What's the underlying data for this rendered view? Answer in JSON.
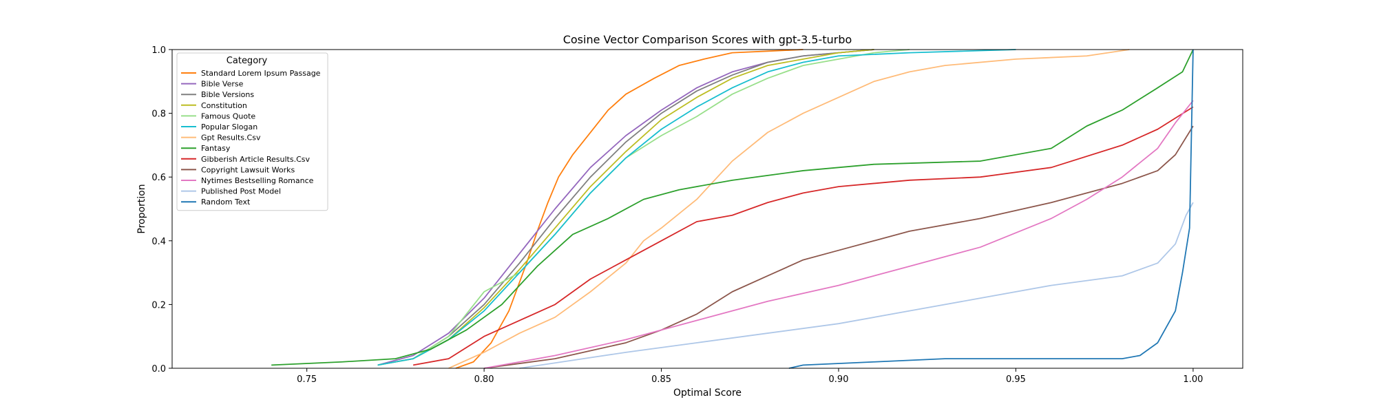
{
  "chart_data": {
    "type": "line",
    "title": "Cosine Vector Comparison Scores with gpt-3.5-turbo",
    "xlabel": "Optimal Score",
    "ylabel": "Proportion",
    "xlim": [
      0.712,
      1.014
    ],
    "ylim": [
      0.0,
      1.0
    ],
    "xticks": [
      0.75,
      0.8,
      0.85,
      0.9,
      0.95,
      1.0
    ],
    "xtick_labels": [
      "0.75",
      "0.80",
      "0.85",
      "0.90",
      "0.95",
      "1.00"
    ],
    "yticks": [
      0.0,
      0.2,
      0.4,
      0.6,
      0.8,
      1.0
    ],
    "ytick_labels": [
      "0.0",
      "0.2",
      "0.4",
      "0.6",
      "0.8",
      "1.0"
    ],
    "grid": false,
    "legend_title": "Category",
    "legend_position": "upper-left",
    "series": [
      {
        "name": "Standard Lorem Ipsum Passage",
        "color": "#ff7f0e",
        "x": [
          0.792,
          0.797,
          0.802,
          0.807,
          0.812,
          0.815,
          0.818,
          0.821,
          0.825,
          0.83,
          0.835,
          0.84,
          0.848,
          0.855,
          0.862,
          0.87,
          0.88,
          0.89
        ],
        "y": [
          0.0,
          0.02,
          0.08,
          0.18,
          0.33,
          0.43,
          0.52,
          0.6,
          0.67,
          0.74,
          0.81,
          0.86,
          0.91,
          0.95,
          0.97,
          0.99,
          0.995,
          1.0
        ]
      },
      {
        "name": "Bible Verse",
        "color": "#9467bd",
        "x": [
          0.77,
          0.78,
          0.79,
          0.8,
          0.81,
          0.82,
          0.83,
          0.84,
          0.85,
          0.86,
          0.87,
          0.88,
          0.89,
          0.9,
          0.91
        ],
        "y": [
          0.01,
          0.04,
          0.11,
          0.22,
          0.36,
          0.5,
          0.63,
          0.73,
          0.81,
          0.88,
          0.93,
          0.96,
          0.98,
          0.99,
          1.0
        ]
      },
      {
        "name": "Bible Versions",
        "color": "#7f7f7f",
        "x": [
          0.77,
          0.78,
          0.79,
          0.8,
          0.81,
          0.82,
          0.83,
          0.84,
          0.85,
          0.86,
          0.87,
          0.88,
          0.89,
          0.9,
          0.91
        ],
        "y": [
          0.01,
          0.03,
          0.1,
          0.2,
          0.33,
          0.47,
          0.6,
          0.71,
          0.8,
          0.87,
          0.92,
          0.96,
          0.98,
          0.99,
          1.0
        ]
      },
      {
        "name": "Constitution",
        "color": "#bcbd22",
        "x": [
          0.77,
          0.78,
          0.79,
          0.8,
          0.81,
          0.82,
          0.83,
          0.84,
          0.85,
          0.86,
          0.87,
          0.88,
          0.89,
          0.9,
          0.91
        ],
        "y": [
          0.01,
          0.03,
          0.09,
          0.19,
          0.31,
          0.44,
          0.57,
          0.68,
          0.78,
          0.85,
          0.91,
          0.95,
          0.97,
          0.99,
          1.0
        ]
      },
      {
        "name": "Famous Quote",
        "color": "#98df8a",
        "x": [
          0.77,
          0.78,
          0.79,
          0.8,
          0.81,
          0.82,
          0.83,
          0.84,
          0.85,
          0.86,
          0.87,
          0.88,
          0.89,
          0.9,
          0.91,
          0.92
        ],
        "y": [
          0.01,
          0.03,
          0.1,
          0.24,
          0.3,
          0.42,
          0.55,
          0.66,
          0.73,
          0.79,
          0.86,
          0.91,
          0.95,
          0.97,
          0.99,
          1.0
        ]
      },
      {
        "name": "Popular Slogan",
        "color": "#17becf",
        "x": [
          0.77,
          0.78,
          0.79,
          0.8,
          0.81,
          0.82,
          0.83,
          0.84,
          0.85,
          0.86,
          0.87,
          0.88,
          0.89,
          0.9,
          0.92,
          0.95
        ],
        "y": [
          0.01,
          0.03,
          0.09,
          0.18,
          0.3,
          0.42,
          0.55,
          0.66,
          0.75,
          0.82,
          0.88,
          0.93,
          0.96,
          0.98,
          0.99,
          1.0
        ]
      },
      {
        "name": "Gpt Results.Csv",
        "color": "#ffbb78",
        "x": [
          0.79,
          0.8,
          0.81,
          0.82,
          0.83,
          0.84,
          0.845,
          0.85,
          0.86,
          0.87,
          0.88,
          0.89,
          0.9,
          0.91,
          0.92,
          0.93,
          0.95,
          0.97,
          0.982
        ],
        "y": [
          0.0,
          0.05,
          0.11,
          0.16,
          0.24,
          0.33,
          0.4,
          0.44,
          0.53,
          0.65,
          0.74,
          0.8,
          0.85,
          0.9,
          0.93,
          0.95,
          0.97,
          0.98,
          1.0
        ]
      },
      {
        "name": "Fantasy",
        "color": "#2ca02c",
        "x": [
          0.74,
          0.76,
          0.775,
          0.785,
          0.795,
          0.805,
          0.815,
          0.825,
          0.835,
          0.845,
          0.855,
          0.87,
          0.89,
          0.91,
          0.94,
          0.96,
          0.97,
          0.98,
          0.99,
          0.997,
          1.0
        ],
        "y": [
          0.01,
          0.02,
          0.03,
          0.06,
          0.12,
          0.2,
          0.32,
          0.42,
          0.47,
          0.53,
          0.56,
          0.59,
          0.62,
          0.64,
          0.65,
          0.69,
          0.76,
          0.81,
          0.88,
          0.93,
          1.0
        ]
      },
      {
        "name": "Gibberish Article Results.Csv",
        "color": "#d62728",
        "x": [
          0.78,
          0.79,
          0.8,
          0.81,
          0.82,
          0.83,
          0.84,
          0.85,
          0.86,
          0.87,
          0.88,
          0.89,
          0.9,
          0.92,
          0.94,
          0.96,
          0.98,
          0.99,
          1.0
        ],
        "y": [
          0.01,
          0.03,
          0.1,
          0.15,
          0.2,
          0.28,
          0.34,
          0.4,
          0.46,
          0.48,
          0.52,
          0.55,
          0.57,
          0.59,
          0.6,
          0.63,
          0.7,
          0.75,
          0.82
        ]
      },
      {
        "name": "Copyright Lawsuit Works",
        "color": "#8c564b",
        "x": [
          0.8,
          0.82,
          0.84,
          0.85,
          0.86,
          0.87,
          0.88,
          0.89,
          0.9,
          0.91,
          0.92,
          0.94,
          0.96,
          0.98,
          0.99,
          0.995,
          1.0
        ],
        "y": [
          0.0,
          0.03,
          0.08,
          0.12,
          0.17,
          0.24,
          0.29,
          0.34,
          0.37,
          0.4,
          0.43,
          0.47,
          0.52,
          0.58,
          0.62,
          0.67,
          0.76
        ]
      },
      {
        "name": "Nytimes Bestselling Romance",
        "color": "#e377c2",
        "x": [
          0.8,
          0.82,
          0.84,
          0.86,
          0.88,
          0.9,
          0.92,
          0.94,
          0.96,
          0.97,
          0.98,
          0.99,
          0.995,
          1.0
        ],
        "y": [
          0.0,
          0.04,
          0.09,
          0.15,
          0.21,
          0.26,
          0.32,
          0.38,
          0.47,
          0.53,
          0.6,
          0.69,
          0.77,
          0.84
        ]
      },
      {
        "name": "Published Post Model",
        "color": "#aec7e8",
        "x": [
          0.81,
          0.84,
          0.86,
          0.88,
          0.9,
          0.92,
          0.94,
          0.96,
          0.98,
          0.99,
          0.995,
          0.998,
          1.0
        ],
        "y": [
          0.0,
          0.05,
          0.08,
          0.11,
          0.14,
          0.18,
          0.22,
          0.26,
          0.29,
          0.33,
          0.39,
          0.48,
          0.52
        ]
      },
      {
        "name": "Random Text",
        "color": "#1f77b4",
        "x": [
          0.886,
          0.89,
          0.91,
          0.93,
          0.95,
          0.97,
          0.98,
          0.985,
          0.99,
          0.995,
          0.997,
          0.999,
          1.0
        ],
        "y": [
          0.0,
          0.01,
          0.02,
          0.03,
          0.03,
          0.03,
          0.03,
          0.04,
          0.08,
          0.18,
          0.3,
          0.44,
          1.0
        ]
      }
    ]
  }
}
